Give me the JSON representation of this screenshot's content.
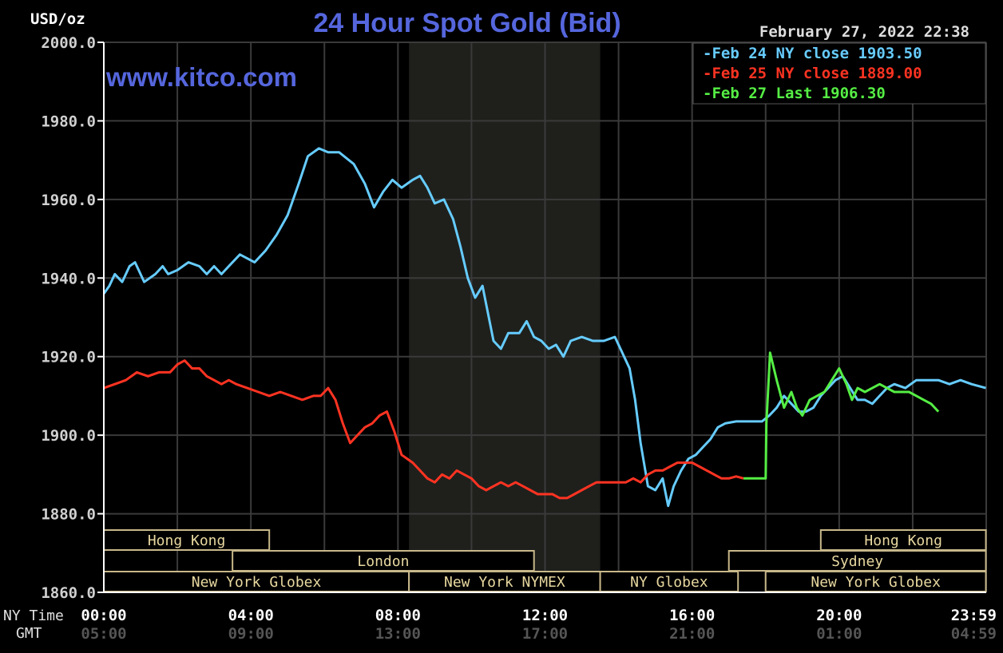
{
  "chart_data": {
    "type": "line",
    "title": "24 Hour Spot Gold (Bid)",
    "watermark": "www.kitco.com",
    "timestamp": "February 27, 2022 22:38",
    "ylabel": "USD/oz",
    "ylim": [
      1860,
      2000
    ],
    "y_ticks": [
      "2000.0",
      "1980.0",
      "1960.0",
      "1940.0",
      "1920.0",
      "1900.0",
      "1880.0",
      "1860.0"
    ],
    "x_range_hours": [
      0,
      24
    ],
    "x_row_label": "NY Time",
    "x_ticks": [
      "00:00",
      "04:00",
      "08:00",
      "12:00",
      "16:00",
      "20:00",
      "23:59"
    ],
    "x2_row_label": "GMT",
    "x2_ticks": [
      "05:00",
      "09:00",
      "13:00",
      "17:00",
      "21:00",
      "01:00",
      "04:59"
    ],
    "grid": true,
    "legend_position": "top-right",
    "colors": {
      "background": "#000000",
      "grid": "#3a3a3a",
      "axis": "#ffffff",
      "text": "#d0d0d0",
      "title": "#5566dd",
      "session_box": "#c8b88a",
      "session_text": "#e8d8a0",
      "shade": "#1f201c"
    },
    "shaded_hours": [
      8.3,
      13.5
    ],
    "series": [
      {
        "name": "Feb 24 NY close 1903.50",
        "color": "#66ccff",
        "points": [
          [
            0.0,
            1936
          ],
          [
            0.15,
            1938
          ],
          [
            0.3,
            1941
          ],
          [
            0.5,
            1939
          ],
          [
            0.7,
            1943
          ],
          [
            0.85,
            1944
          ],
          [
            1.0,
            1941
          ],
          [
            1.1,
            1939
          ],
          [
            1.4,
            1941
          ],
          [
            1.6,
            1943
          ],
          [
            1.75,
            1941
          ],
          [
            2.0,
            1942
          ],
          [
            2.3,
            1944
          ],
          [
            2.6,
            1943
          ],
          [
            2.8,
            1941
          ],
          [
            3.0,
            1943
          ],
          [
            3.2,
            1941
          ],
          [
            3.4,
            1943
          ],
          [
            3.7,
            1946
          ],
          [
            3.9,
            1945
          ],
          [
            4.1,
            1944
          ],
          [
            4.4,
            1947
          ],
          [
            4.7,
            1951
          ],
          [
            5.0,
            1956
          ],
          [
            5.3,
            1964
          ],
          [
            5.55,
            1971
          ],
          [
            5.85,
            1973
          ],
          [
            6.1,
            1972
          ],
          [
            6.4,
            1972
          ],
          [
            6.8,
            1969
          ],
          [
            7.1,
            1964
          ],
          [
            7.35,
            1958
          ],
          [
            7.6,
            1962
          ],
          [
            7.85,
            1965
          ],
          [
            8.1,
            1963
          ],
          [
            8.4,
            1965
          ],
          [
            8.6,
            1966
          ],
          [
            8.8,
            1963
          ],
          [
            9.0,
            1959
          ],
          [
            9.25,
            1960
          ],
          [
            9.5,
            1955
          ],
          [
            9.7,
            1948
          ],
          [
            9.9,
            1940
          ],
          [
            10.1,
            1935
          ],
          [
            10.3,
            1938
          ],
          [
            10.45,
            1931
          ],
          [
            10.6,
            1924
          ],
          [
            10.8,
            1922
          ],
          [
            11.0,
            1926
          ],
          [
            11.3,
            1926
          ],
          [
            11.5,
            1929
          ],
          [
            11.7,
            1925
          ],
          [
            11.9,
            1924
          ],
          [
            12.1,
            1922
          ],
          [
            12.3,
            1923
          ],
          [
            12.5,
            1920
          ],
          [
            12.7,
            1924
          ],
          [
            13.0,
            1925
          ],
          [
            13.3,
            1924
          ],
          [
            13.6,
            1924
          ],
          [
            13.9,
            1925
          ],
          [
            14.0,
            1923
          ],
          [
            14.3,
            1917
          ],
          [
            14.45,
            1909
          ],
          [
            14.6,
            1898
          ],
          [
            14.8,
            1887
          ],
          [
            15.0,
            1886
          ],
          [
            15.2,
            1889
          ],
          [
            15.35,
            1882
          ],
          [
            15.5,
            1887
          ],
          [
            15.7,
            1891
          ],
          [
            15.9,
            1894
          ],
          [
            16.1,
            1895
          ],
          [
            16.3,
            1897
          ],
          [
            16.5,
            1899
          ],
          [
            16.7,
            1902
          ],
          [
            16.9,
            1903
          ],
          [
            17.2,
            1903.5
          ],
          [
            17.6,
            1903.5
          ],
          [
            17.9,
            1903.5
          ],
          [
            18.1,
            1905
          ],
          [
            18.3,
            1907
          ],
          [
            18.5,
            1910
          ],
          [
            18.7,
            1908
          ],
          [
            18.9,
            1906
          ],
          [
            19.1,
            1906
          ],
          [
            19.3,
            1907
          ],
          [
            19.5,
            1910
          ],
          [
            19.7,
            1912
          ],
          [
            19.9,
            1914
          ],
          [
            20.1,
            1915
          ],
          [
            20.3,
            1912
          ],
          [
            20.5,
            1909
          ],
          [
            20.7,
            1909
          ],
          [
            20.9,
            1908
          ],
          [
            21.1,
            1910
          ],
          [
            21.3,
            1912
          ],
          [
            21.5,
            1913
          ],
          [
            21.8,
            1912
          ],
          [
            22.1,
            1914
          ],
          [
            22.4,
            1914
          ],
          [
            22.7,
            1914
          ],
          [
            23.0,
            1913
          ],
          [
            23.3,
            1914
          ],
          [
            23.6,
            1913
          ],
          [
            23.99,
            1912
          ]
        ]
      },
      {
        "name": "Feb 25 NY close 1889.00",
        "color": "#ff3322",
        "points": [
          [
            0.0,
            1912
          ],
          [
            0.3,
            1913
          ],
          [
            0.6,
            1914
          ],
          [
            0.9,
            1916
          ],
          [
            1.2,
            1915
          ],
          [
            1.5,
            1916
          ],
          [
            1.8,
            1916
          ],
          [
            2.0,
            1918
          ],
          [
            2.2,
            1919
          ],
          [
            2.4,
            1917
          ],
          [
            2.6,
            1917
          ],
          [
            2.8,
            1915
          ],
          [
            3.0,
            1914
          ],
          [
            3.2,
            1913
          ],
          [
            3.4,
            1914
          ],
          [
            3.6,
            1913
          ],
          [
            3.9,
            1912
          ],
          [
            4.2,
            1911
          ],
          [
            4.5,
            1910
          ],
          [
            4.8,
            1911
          ],
          [
            5.1,
            1910
          ],
          [
            5.4,
            1909
          ],
          [
            5.7,
            1910
          ],
          [
            5.9,
            1910
          ],
          [
            6.1,
            1912
          ],
          [
            6.3,
            1909
          ],
          [
            6.5,
            1903
          ],
          [
            6.7,
            1898
          ],
          [
            6.9,
            1900
          ],
          [
            7.1,
            1902
          ],
          [
            7.3,
            1903
          ],
          [
            7.5,
            1905
          ],
          [
            7.7,
            1906
          ],
          [
            7.9,
            1901
          ],
          [
            8.1,
            1895
          ],
          [
            8.4,
            1893
          ],
          [
            8.6,
            1891
          ],
          [
            8.8,
            1889
          ],
          [
            9.0,
            1888
          ],
          [
            9.2,
            1890
          ],
          [
            9.4,
            1889
          ],
          [
            9.6,
            1891
          ],
          [
            9.8,
            1890
          ],
          [
            10.0,
            1889
          ],
          [
            10.2,
            1887
          ],
          [
            10.4,
            1886
          ],
          [
            10.6,
            1887
          ],
          [
            10.8,
            1888
          ],
          [
            11.0,
            1887
          ],
          [
            11.2,
            1888
          ],
          [
            11.4,
            1887
          ],
          [
            11.6,
            1886
          ],
          [
            11.8,
            1885
          ],
          [
            12.0,
            1885
          ],
          [
            12.2,
            1885
          ],
          [
            12.4,
            1884
          ],
          [
            12.6,
            1884
          ],
          [
            12.8,
            1885
          ],
          [
            13.0,
            1886
          ],
          [
            13.2,
            1887
          ],
          [
            13.4,
            1888
          ],
          [
            13.6,
            1888
          ],
          [
            13.8,
            1888
          ],
          [
            14.0,
            1888
          ],
          [
            14.2,
            1888
          ],
          [
            14.4,
            1889
          ],
          [
            14.6,
            1888
          ],
          [
            14.8,
            1890
          ],
          [
            15.0,
            1891
          ],
          [
            15.2,
            1891
          ],
          [
            15.4,
            1892
          ],
          [
            15.6,
            1893
          ],
          [
            15.8,
            1893
          ],
          [
            16.0,
            1893
          ],
          [
            16.2,
            1892
          ],
          [
            16.4,
            1891
          ],
          [
            16.6,
            1890
          ],
          [
            16.8,
            1889
          ],
          [
            17.0,
            1889
          ],
          [
            17.2,
            1889.5
          ],
          [
            17.4,
            1889
          ]
        ]
      },
      {
        "name": "Feb 27 Last 1906.30",
        "color": "#55ee44",
        "points": [
          [
            17.4,
            1889
          ],
          [
            17.9,
            1889
          ],
          [
            18.0,
            1889
          ],
          [
            18.02,
            1903
          ],
          [
            18.12,
            1921
          ],
          [
            18.3,
            1914
          ],
          [
            18.5,
            1907
          ],
          [
            18.7,
            1911
          ],
          [
            18.85,
            1907
          ],
          [
            19.0,
            1905
          ],
          [
            19.2,
            1909
          ],
          [
            19.4,
            1910
          ],
          [
            19.6,
            1911
          ],
          [
            19.8,
            1914
          ],
          [
            20.0,
            1917
          ],
          [
            20.2,
            1913
          ],
          [
            20.35,
            1909
          ],
          [
            20.5,
            1912
          ],
          [
            20.7,
            1911
          ],
          [
            20.9,
            1912
          ],
          [
            21.1,
            1913
          ],
          [
            21.3,
            1912
          ],
          [
            21.5,
            1911
          ],
          [
            21.7,
            1911
          ],
          [
            21.9,
            1911
          ],
          [
            22.1,
            1910
          ],
          [
            22.3,
            1909
          ],
          [
            22.5,
            1908
          ],
          [
            22.7,
            1906
          ]
        ]
      }
    ],
    "sessions": [
      {
        "label": "Hong Kong",
        "row": 1,
        "start": 0.0,
        "end": 4.5
      },
      {
        "label": "London",
        "row": 2,
        "start": 3.5,
        "end": 11.7
      },
      {
        "label": "New York Globex",
        "row": 3,
        "start": 0.0,
        "end": 8.3
      },
      {
        "label": "New York NYMEX",
        "row": 3,
        "start": 8.3,
        "end": 13.5
      },
      {
        "label": "NY Globex",
        "row": 3,
        "start": 13.5,
        "end": 17.25
      },
      {
        "label": "Hong Kong",
        "row": 1,
        "start": 19.5,
        "end": 23.99
      },
      {
        "label": "Sydney",
        "row": 2,
        "start": 17.0,
        "end": 23.99
      },
      {
        "label": "New York Globex",
        "row": 3,
        "start": 18.0,
        "end": 23.99
      }
    ]
  }
}
